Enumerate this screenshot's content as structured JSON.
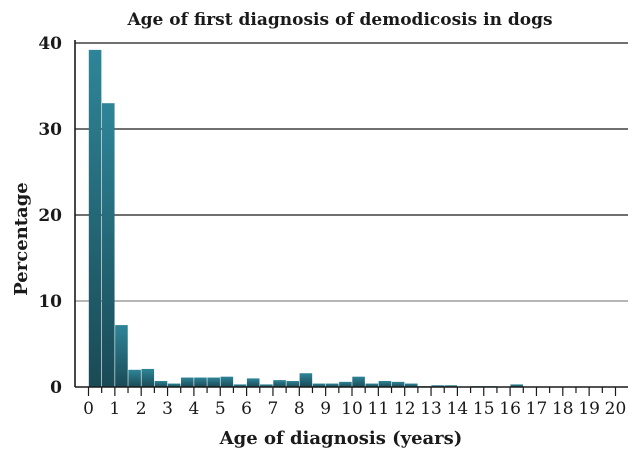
{
  "chart_data": {
    "type": "bar",
    "title": "Age of first diagnosis of demodicosis in dogs",
    "xlabel": "Age of diagnosis (years)",
    "ylabel": "Percentage",
    "xlim": [
      0,
      20
    ],
    "ylim": [
      0,
      40
    ],
    "bin_width": 0.5,
    "x_ticks": [
      "0",
      "1",
      "2",
      "3",
      "4",
      "5",
      "6",
      "7",
      "8",
      "9",
      "10",
      "11",
      "12",
      "13",
      "14",
      "15",
      "16",
      "17",
      "18",
      "19",
      "20"
    ],
    "y_ticks": [
      "0",
      "10",
      "20",
      "30",
      "40"
    ],
    "grid": "horizontal",
    "bar_color": "#2e8598",
    "bar_color_dark": "#1a4a56",
    "bins": [
      {
        "x": 0.0,
        "value": 39.2
      },
      {
        "x": 0.5,
        "value": 33.0
      },
      {
        "x": 1.0,
        "value": 7.2
      },
      {
        "x": 1.5,
        "value": 2.0
      },
      {
        "x": 2.0,
        "value": 2.1
      },
      {
        "x": 2.5,
        "value": 0.7
      },
      {
        "x": 3.0,
        "value": 0.4
      },
      {
        "x": 3.5,
        "value": 1.1
      },
      {
        "x": 4.0,
        "value": 1.1
      },
      {
        "x": 4.5,
        "value": 1.1
      },
      {
        "x": 5.0,
        "value": 1.2
      },
      {
        "x": 5.5,
        "value": 0.3
      },
      {
        "x": 6.0,
        "value": 1.0
      },
      {
        "x": 6.5,
        "value": 0.3
      },
      {
        "x": 7.0,
        "value": 0.8
      },
      {
        "x": 7.5,
        "value": 0.7
      },
      {
        "x": 8.0,
        "value": 1.6
      },
      {
        "x": 8.5,
        "value": 0.4
      },
      {
        "x": 9.0,
        "value": 0.4
      },
      {
        "x": 9.5,
        "value": 0.6
      },
      {
        "x": 10.0,
        "value": 1.2
      },
      {
        "x": 10.5,
        "value": 0.4
      },
      {
        "x": 11.0,
        "value": 0.7
      },
      {
        "x": 11.5,
        "value": 0.6
      },
      {
        "x": 12.0,
        "value": 0.4
      },
      {
        "x": 12.5,
        "value": 0.1
      },
      {
        "x": 13.0,
        "value": 0.2
      },
      {
        "x": 13.5,
        "value": 0.2
      },
      {
        "x": 14.0,
        "value": 0.0
      },
      {
        "x": 14.5,
        "value": 0.1
      },
      {
        "x": 15.0,
        "value": 0.1
      },
      {
        "x": 15.5,
        "value": 0.0
      },
      {
        "x": 16.0,
        "value": 0.3
      }
    ]
  }
}
